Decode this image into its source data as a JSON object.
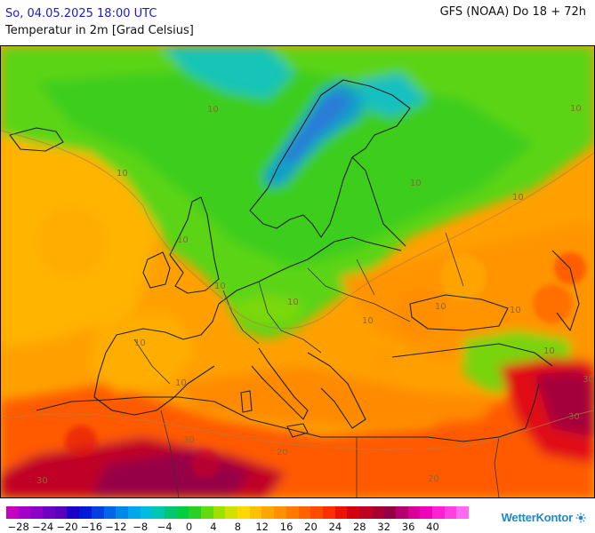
{
  "header": {
    "datetime": "So, 04.05.2025 18:00 UTC",
    "parameter": "Temperatur in 2m [Grad Celsius]",
    "model_run": "GFS (NOAA) Do 18 + 72h"
  },
  "map": {
    "contour_labels": [
      "10",
      "10",
      "10",
      "10",
      "10",
      "10",
      "10",
      "10",
      "10",
      "10",
      "10",
      "10",
      "10",
      "10",
      "30",
      "30",
      "30",
      "30",
      "20",
      "20"
    ]
  },
  "legend": {
    "colors": [
      "#c400c4",
      "#a300c8",
      "#8c00c8",
      "#7000c0",
      "#5a00b8",
      "#1a00c8",
      "#0018d8",
      "#0040e0",
      "#0066e6",
      "#0088e8",
      "#00a8ea",
      "#00bce0",
      "#00c8b0",
      "#00c870",
      "#00d040",
      "#2ad028",
      "#64d810",
      "#9ee000",
      "#d2e200",
      "#ffd800",
      "#ffc000",
      "#ffa600",
      "#ff9000",
      "#ff7a00",
      "#ff6200",
      "#ff4a00",
      "#ff2c00",
      "#ee1000",
      "#d40010",
      "#c00020",
      "#aa0030",
      "#960044",
      "#b40070",
      "#d80096",
      "#f000b8",
      "#ff20d0",
      "#ff40e0",
      "#ff6af0"
    ],
    "ticks": [
      "−28",
      "−24",
      "−20",
      "−16",
      "−12",
      "−8",
      "−4",
      "0",
      "4",
      "8",
      "12",
      "16",
      "20",
      "24",
      "28",
      "32",
      "36",
      "40"
    ]
  },
  "brand": {
    "name": "WetterKontor"
  }
}
